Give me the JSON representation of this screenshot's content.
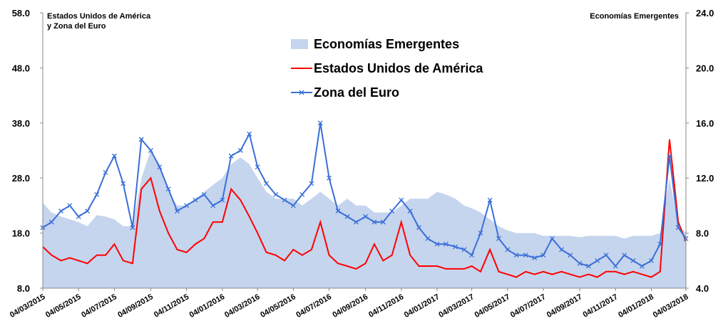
{
  "chart_data": {
    "type": "line",
    "ylabel": [
      "Estados Unidos de América",
      "y Zona del Euro"
    ],
    "y2label": "Economías Emergentes",
    "x": [
      "04/03/2015",
      "19/03/2015",
      "04/04/2015",
      "19/04/2015",
      "04/05/2015",
      "19/05/2015",
      "04/06/2015",
      "19/06/2015",
      "04/07/2015",
      "19/07/2015",
      "04/08/2015",
      "19/08/2015",
      "04/09/2015",
      "19/09/2015",
      "04/10/2015",
      "19/10/2015",
      "04/11/2015",
      "19/11/2015",
      "04/12/2015",
      "19/12/2015",
      "04/01/2016",
      "19/01/2016",
      "04/02/2016",
      "19/02/2016",
      "04/03/2016",
      "19/03/2016",
      "04/04/2016",
      "19/04/2016",
      "04/05/2016",
      "19/05/2016",
      "04/06/2016",
      "19/06/2016",
      "04/07/2016",
      "19/07/2016",
      "04/08/2016",
      "19/08/2016",
      "04/09/2016",
      "19/09/2016",
      "04/10/2016",
      "19/10/2016",
      "04/11/2016",
      "19/11/2016",
      "04/12/2016",
      "19/12/2016",
      "04/01/2017",
      "19/01/2017",
      "04/02/2017",
      "19/02/2017",
      "04/03/2017",
      "19/03/2017",
      "04/04/2017",
      "19/04/2017",
      "04/05/2017",
      "19/05/2017",
      "04/06/2017",
      "19/06/2017",
      "04/07/2017",
      "19/07/2017",
      "04/08/2017",
      "19/08/2017",
      "04/09/2017",
      "19/09/2017",
      "04/10/2017",
      "19/10/2017",
      "04/11/2017",
      "19/11/2017",
      "04/12/2017",
      "19/12/2017",
      "04/01/2018",
      "19/01/2018",
      "04/02/2018",
      "19/02/2018",
      "04/03/2018"
    ],
    "xticks": [
      "04/03/2015",
      "04/05/2015",
      "04/07/2015",
      "04/09/2015",
      "04/11/2015",
      "04/01/2016",
      "04/03/2016",
      "04/05/2016",
      "04/07/2016",
      "04/09/2016",
      "04/11/2016",
      "04/01/2017",
      "04/03/2017",
      "04/05/2017",
      "04/07/2017",
      "04/09/2017",
      "04/11/2017",
      "04/01/2018",
      "04/03/2018"
    ],
    "ylim": [
      8,
      58
    ],
    "yticks": [
      {
        "value": 8,
        "label": "8.0"
      },
      {
        "value": 18,
        "label": "18.0"
      },
      {
        "value": 28,
        "label": "28.0"
      },
      {
        "value": 38,
        "label": "38.0"
      },
      {
        "value": 48,
        "label": "48.0"
      },
      {
        "value": 58,
        "label": "58.0"
      }
    ],
    "y2lim": [
      4,
      24
    ],
    "y2ticks": [
      {
        "value": 4,
        "label": "4.0"
      },
      {
        "value": 8,
        "label": "8.0"
      },
      {
        "value": 12,
        "label": "12.0"
      },
      {
        "value": 16,
        "label": "16.0"
      },
      {
        "value": 20,
        "label": "20.0"
      },
      {
        "value": 24,
        "label": "24.0"
      }
    ],
    "series": [
      {
        "name": "Economías Emergentes",
        "color": "#c5d5ee",
        "style": "area",
        "axis": "y2",
        "values": [
          10.2,
          9.5,
          9.2,
          9,
          8.8,
          8.5,
          9.3,
          9.2,
          9,
          8.5,
          8.5,
          12,
          14,
          13,
          11,
          10,
          10,
          10.5,
          11,
          11.5,
          12,
          13,
          13.5,
          13,
          12,
          11,
          10.5,
          10.5,
          10.5,
          10,
          10.5,
          11,
          10.5,
          10,
          10.5,
          10,
          10,
          9.5,
          9.5,
          9.5,
          10,
          10.5,
          10.5,
          10.5,
          11,
          10.8,
          10.5,
          10,
          9.8,
          9.5,
          9,
          8.5,
          8.2,
          8,
          8,
          8,
          7.8,
          7.8,
          7.8,
          7.8,
          7.7,
          7.8,
          7.8,
          7.8,
          7.8,
          7.6,
          7.8,
          7.8,
          7.8,
          8,
          12,
          8.5,
          8
        ]
      },
      {
        "name": "Estados Unidos de América",
        "color": "#ff0000",
        "style": "line",
        "values": [
          15.5,
          14,
          13,
          13.5,
          13,
          12.5,
          14,
          14,
          16,
          13,
          12.5,
          26,
          28,
          22,
          18,
          15,
          14.5,
          16,
          17,
          20,
          20,
          26,
          24,
          21,
          18,
          14.5,
          14,
          13,
          15,
          14,
          15,
          20,
          14,
          12.5,
          12,
          11.5,
          12.5,
          16,
          13,
          14,
          20,
          14,
          12,
          12,
          12,
          11.5,
          11.5,
          11.5,
          12,
          11,
          15,
          11,
          10.5,
          10,
          11,
          10.5,
          11,
          10.5,
          11,
          10.5,
          10,
          10.5,
          10,
          11,
          11,
          10.5,
          11,
          10.5,
          10,
          11,
          35,
          20,
          16.5
        ]
      },
      {
        "name": "Zona del Euro",
        "color": "#3a6fd8",
        "style": "line-marker",
        "values": [
          19,
          20,
          22,
          23,
          21,
          22,
          25,
          29,
          32,
          27,
          19,
          35,
          33,
          30,
          26,
          22,
          23,
          24,
          25,
          23,
          24,
          32,
          33,
          36,
          30,
          27,
          25,
          24,
          23,
          25,
          27,
          38,
          28,
          22,
          21,
          20,
          21,
          20,
          20,
          22,
          24,
          22,
          19,
          17,
          16,
          16,
          15.5,
          15,
          14,
          18,
          24,
          17,
          15,
          14,
          14,
          13.5,
          14,
          17,
          15,
          14,
          12.5,
          12,
          13,
          14,
          12,
          14,
          13,
          12,
          13,
          16,
          32,
          19,
          17
        ]
      }
    ]
  }
}
